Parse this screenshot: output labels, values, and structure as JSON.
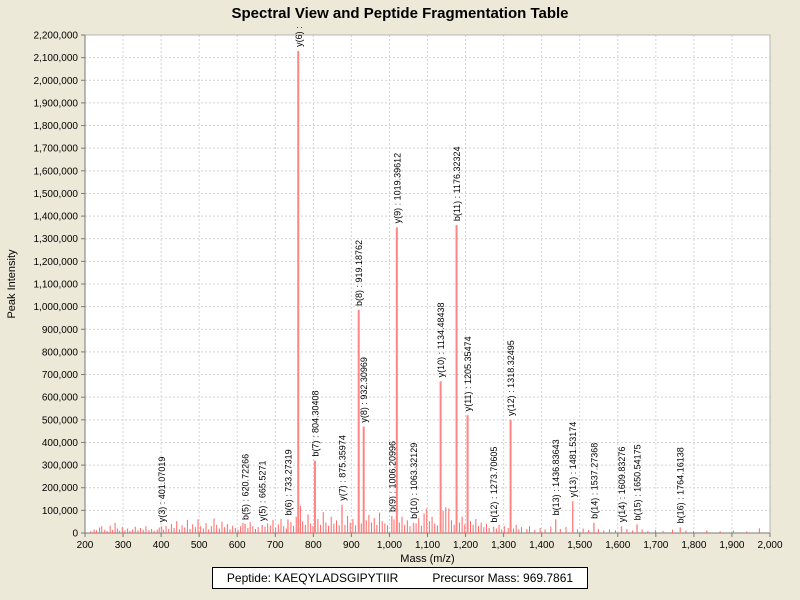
{
  "title": "Spectral View and Peptide Fragmentation Table",
  "footer": {
    "peptide_text": "Peptide: KAEQYLADSGIPYTIIR",
    "precursor_text": "Precursor Mass: 969.7861"
  },
  "chart_data": {
    "type": "bar",
    "subtype": "mass-spectrum-stick-plot",
    "title": "Spectral View and Peptide Fragmentation Table",
    "xlabel": "Mass (m/z)",
    "ylabel": "Peak Intensity",
    "xlim": [
      200,
      2000
    ],
    "ylim": [
      0,
      2200000
    ],
    "x_tick_step": 100,
    "y_tick_step": 100000,
    "grid": true,
    "legend": "none",
    "colors": {
      "background": "#ECE9D8",
      "plot_bg": "#FFFFFF",
      "grid": "#D4D4D4",
      "border": "#B4B4B4",
      "axis": "#7A7A7A",
      "peak": "#FF8585",
      "peak_minor": "#FF6666",
      "text": "#000000"
    },
    "annotated_peaks": [
      {
        "label": "y(3) : 401.07019",
        "mass": 401.07019,
        "intensity": 30000
      },
      {
        "label": "b(5) : 620.72266",
        "mass": 620.72266,
        "intensity": 40000
      },
      {
        "label": "y(5) : 665.5271",
        "mass": 665.5271,
        "intensity": 35000
      },
      {
        "label": "b(6) : 733.27319",
        "mass": 733.27319,
        "intensity": 60000
      },
      {
        "label": "y(6) :",
        "mass": 760.4,
        "intensity": 2130000
      },
      {
        "label": "b(7) : 804.30408",
        "mass": 804.30408,
        "intensity": 320000
      },
      {
        "label": "y(7) : 875.35974",
        "mass": 875.35974,
        "intensity": 125000
      },
      {
        "label": "b(8) : 919.18762",
        "mass": 919.18762,
        "intensity": 985000
      },
      {
        "label": "y(8) : 932.30969",
        "mass": 932.30969,
        "intensity": 470000
      },
      {
        "label": "b(9) : 1006.20996",
        "mass": 1006.20996,
        "intensity": 75000
      },
      {
        "label": "y(9) : 1019.39612",
        "mass": 1019.39612,
        "intensity": 1350000
      },
      {
        "label": "b(10) : 1063.32129",
        "mass": 1063.32129,
        "intensity": 45000
      },
      {
        "label": "y(10) : 1134.48438",
        "mass": 1134.48438,
        "intensity": 670000
      },
      {
        "label": "b(11) : 1176.32324",
        "mass": 1176.32324,
        "intensity": 1360000
      },
      {
        "label": "y(11) : 1205.35474",
        "mass": 1205.35474,
        "intensity": 520000
      },
      {
        "label": "b(12) : 1273.70605",
        "mass": 1273.70605,
        "intensity": 28000
      },
      {
        "label": "y(12) : 1318.32495",
        "mass": 1318.32495,
        "intensity": 500000
      },
      {
        "label": "b(13) : 1436.83643",
        "mass": 1436.83643,
        "intensity": 60000
      },
      {
        "label": "y(13) : 1481.53174",
        "mass": 1481.53174,
        "intensity": 140000
      },
      {
        "label": "b(14) : 1537.27368",
        "mass": 1537.27368,
        "intensity": 45000
      },
      {
        "label": "y(14) : 1609.83276",
        "mass": 1609.83276,
        "intensity": 30000
      },
      {
        "label": "b(15) : 1650.54175",
        "mass": 1650.54175,
        "intensity": 38000
      },
      {
        "label": "b(16) : 1764.16138",
        "mass": 1764.16138,
        "intensity": 25000
      }
    ],
    "background_peaks": [
      [
        215,
        8000
      ],
      [
        224,
        15000
      ],
      [
        230,
        12000
      ],
      [
        238,
        24000
      ],
      [
        244,
        30000
      ],
      [
        252,
        15000
      ],
      [
        258,
        9000
      ],
      [
        266,
        32000
      ],
      [
        272,
        14000
      ],
      [
        279,
        45000
      ],
      [
        285,
        20000
      ],
      [
        291,
        10000
      ],
      [
        298,
        26000
      ],
      [
        305,
        12000
      ],
      [
        312,
        20000
      ],
      [
        318,
        9000
      ],
      [
        325,
        15000
      ],
      [
        332,
        28000
      ],
      [
        339,
        11000
      ],
      [
        346,
        22000
      ],
      [
        353,
        14000
      ],
      [
        360,
        30000
      ],
      [
        368,
        12000
      ],
      [
        375,
        18000
      ],
      [
        382,
        10000
      ],
      [
        390,
        15000
      ],
      [
        395,
        24000
      ],
      [
        406,
        14000
      ],
      [
        413,
        32000
      ],
      [
        420,
        18000
      ],
      [
        427,
        40000
      ],
      [
        434,
        22000
      ],
      [
        441,
        52000
      ],
      [
        448,
        16000
      ],
      [
        455,
        34000
      ],
      [
        462,
        24000
      ],
      [
        469,
        58000
      ],
      [
        476,
        18000
      ],
      [
        483,
        38000
      ],
      [
        490,
        26000
      ],
      [
        497,
        60000
      ],
      [
        504,
        30000
      ],
      [
        511,
        20000
      ],
      [
        518,
        44000
      ],
      [
        525,
        16000
      ],
      [
        532,
        30000
      ],
      [
        539,
        64000
      ],
      [
        546,
        36000
      ],
      [
        553,
        20000
      ],
      [
        560,
        50000
      ],
      [
        567,
        26000
      ],
      [
        574,
        40000
      ],
      [
        581,
        16000
      ],
      [
        588,
        32000
      ],
      [
        595,
        22000
      ],
      [
        602,
        15000
      ],
      [
        609,
        30000
      ],
      [
        615,
        45000
      ],
      [
        628,
        22000
      ],
      [
        634,
        48000
      ],
      [
        641,
        30000
      ],
      [
        648,
        18000
      ],
      [
        655,
        26000
      ],
      [
        673,
        28000
      ],
      [
        680,
        42000
      ],
      [
        687,
        32000
      ],
      [
        694,
        58000
      ],
      [
        701,
        24000
      ],
      [
        708,
        38000
      ],
      [
        715,
        62000
      ],
      [
        722,
        30000
      ],
      [
        729,
        20000
      ],
      [
        741,
        48000
      ],
      [
        748,
        32000
      ],
      [
        755,
        72000
      ],
      [
        766,
        120000
      ],
      [
        772,
        52000
      ],
      [
        779,
        36000
      ],
      [
        786,
        82000
      ],
      [
        793,
        42000
      ],
      [
        799,
        30000
      ],
      [
        812,
        62000
      ],
      [
        819,
        36000
      ],
      [
        826,
        92000
      ],
      [
        833,
        46000
      ],
      [
        840,
        32000
      ],
      [
        847,
        72000
      ],
      [
        854,
        42000
      ],
      [
        861,
        56000
      ],
      [
        868,
        34000
      ],
      [
        883,
        36000
      ],
      [
        890,
        76000
      ],
      [
        897,
        46000
      ],
      [
        904,
        62000
      ],
      [
        911,
        34000
      ],
      [
        926,
        42000
      ],
      [
        939,
        56000
      ],
      [
        946,
        80000
      ],
      [
        953,
        46000
      ],
      [
        960,
        66000
      ],
      [
        967,
        36000
      ],
      [
        974,
        90000
      ],
      [
        981,
        52000
      ],
      [
        988,
        42000
      ],
      [
        995,
        34000
      ],
      [
        1012,
        60000
      ],
      [
        1026,
        46000
      ],
      [
        1033,
        72000
      ],
      [
        1040,
        36000
      ],
      [
        1047,
        56000
      ],
      [
        1054,
        30000
      ],
      [
        1070,
        42000
      ],
      [
        1077,
        66000
      ],
      [
        1084,
        32000
      ],
      [
        1091,
        86000
      ],
      [
        1098,
        108000
      ],
      [
        1105,
        52000
      ],
      [
        1112,
        72000
      ],
      [
        1119,
        42000
      ],
      [
        1126,
        34000
      ],
      [
        1141,
        98000
      ],
      [
        1148,
        114000
      ],
      [
        1156,
        108000
      ],
      [
        1163,
        56000
      ],
      [
        1170,
        36000
      ],
      [
        1184,
        46000
      ],
      [
        1191,
        72000
      ],
      [
        1198,
        38000
      ],
      [
        1213,
        52000
      ],
      [
        1220,
        36000
      ],
      [
        1227,
        62000
      ],
      [
        1234,
        30000
      ],
      [
        1241,
        46000
      ],
      [
        1248,
        26000
      ],
      [
        1255,
        40000
      ],
      [
        1262,
        22000
      ],
      [
        1281,
        20000
      ],
      [
        1288,
        36000
      ],
      [
        1295,
        16000
      ],
      [
        1302,
        30000
      ],
      [
        1312,
        22000
      ],
      [
        1326,
        20000
      ],
      [
        1333,
        36000
      ],
      [
        1340,
        16000
      ],
      [
        1347,
        26000
      ],
      [
        1361,
        18000
      ],
      [
        1368,
        30000
      ],
      [
        1382,
        14000
      ],
      [
        1396,
        22000
      ],
      [
        1409,
        16000
      ],
      [
        1424,
        28000
      ],
      [
        1449,
        18000
      ],
      [
        1464,
        26000
      ],
      [
        1494,
        16000
      ],
      [
        1509,
        20000
      ],
      [
        1523,
        13000
      ],
      [
        1549,
        18000
      ],
      [
        1563,
        11000
      ],
      [
        1578,
        16000
      ],
      [
        1594,
        12000
      ],
      [
        1624,
        18000
      ],
      [
        1639,
        11000
      ],
      [
        1664,
        16000
      ],
      [
        1679,
        9000
      ],
      [
        1699,
        13000
      ],
      [
        1719,
        9000
      ],
      [
        1744,
        15000
      ],
      [
        1779,
        11000
      ],
      [
        1799,
        8000
      ],
      [
        1834,
        12000
      ],
      [
        1869,
        8000
      ],
      [
        1904,
        10000
      ],
      [
        1939,
        7000
      ],
      [
        1972,
        21000
      ]
    ]
  }
}
